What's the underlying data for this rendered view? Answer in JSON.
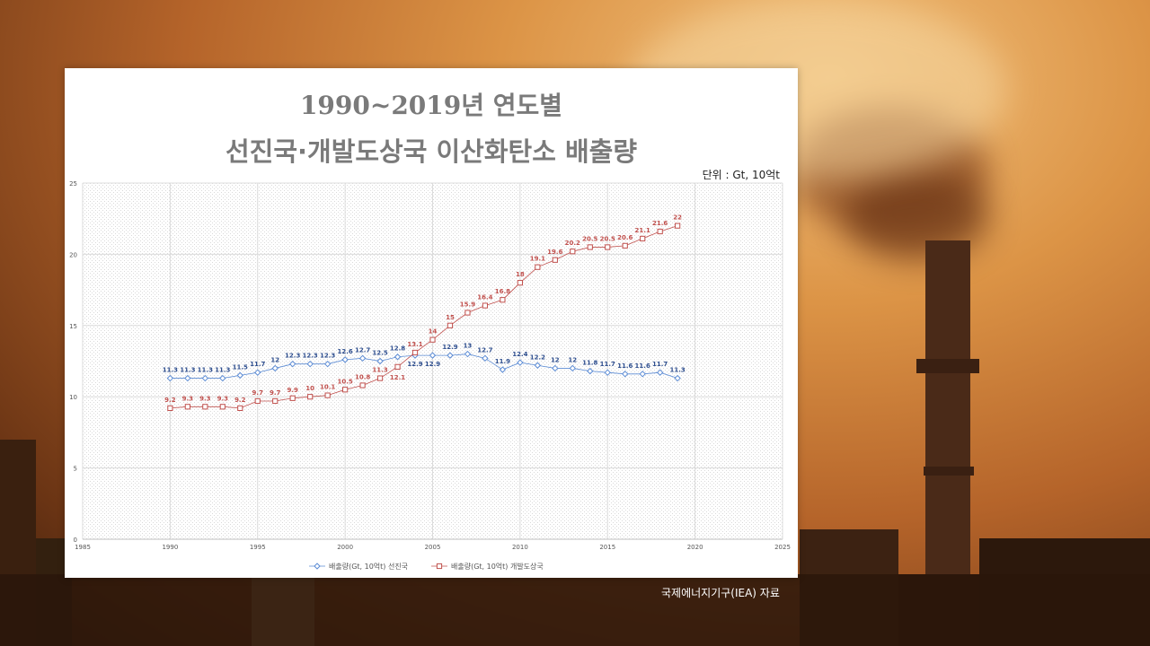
{
  "chart_data": {
    "type": "line",
    "title": "1990~2019년 연도별",
    "subtitle": "선진국·개발도상국 이산화탄소 배출량",
    "unit_label": "단위 : Gt, 10억t",
    "xlim": [
      1985,
      2025
    ],
    "ylim": [
      0,
      25
    ],
    "x_ticks": [
      "1985",
      "1990",
      "1995",
      "2000",
      "2005",
      "2010",
      "2015",
      "2020",
      "2025"
    ],
    "y_ticks": [
      "0",
      "5",
      "10",
      "15",
      "20",
      "25"
    ],
    "grid": true,
    "legend_position": "bottom",
    "x": [
      1990,
      1991,
      1992,
      1993,
      1994,
      1995,
      1996,
      1997,
      1998,
      1999,
      2000,
      2001,
      2002,
      2003,
      2004,
      2005,
      2006,
      2007,
      2008,
      2009,
      2010,
      2011,
      2012,
      2013,
      2014,
      2015,
      2016,
      2017,
      2018,
      2019
    ],
    "series": [
      {
        "name": "배출량(Gt, 10억t) 선진국",
        "color": "#5b8bd4",
        "label_color": "#2f4f8f",
        "marker": "diamond",
        "values": [
          11.3,
          11.3,
          11.3,
          11.3,
          11.5,
          11.7,
          12,
          12.3,
          12.3,
          12.3,
          12.6,
          12.7,
          12.5,
          12.8,
          12.9,
          12.9,
          12.9,
          13,
          12.7,
          11.9,
          12.4,
          12.2,
          12,
          12,
          11.8,
          11.7,
          11.6,
          11.6,
          11.7,
          11.3
        ]
      },
      {
        "name": "배출량(Gt, 10억t) 개발도상국",
        "color": "#c0504d",
        "label_color": "#c0504d",
        "marker": "square",
        "values": [
          9.2,
          9.3,
          9.3,
          9.3,
          9.2,
          9.7,
          9.7,
          9.9,
          10,
          10.1,
          10.5,
          10.8,
          11.3,
          12.1,
          13.1,
          14,
          15,
          15.9,
          16.4,
          16.8,
          18,
          19.1,
          19.6,
          20.2,
          20.5,
          20.5,
          20.6,
          21.1,
          21.6,
          22
        ]
      }
    ]
  },
  "footer": {
    "source": "국제에너지기구(IEA) 자료"
  }
}
